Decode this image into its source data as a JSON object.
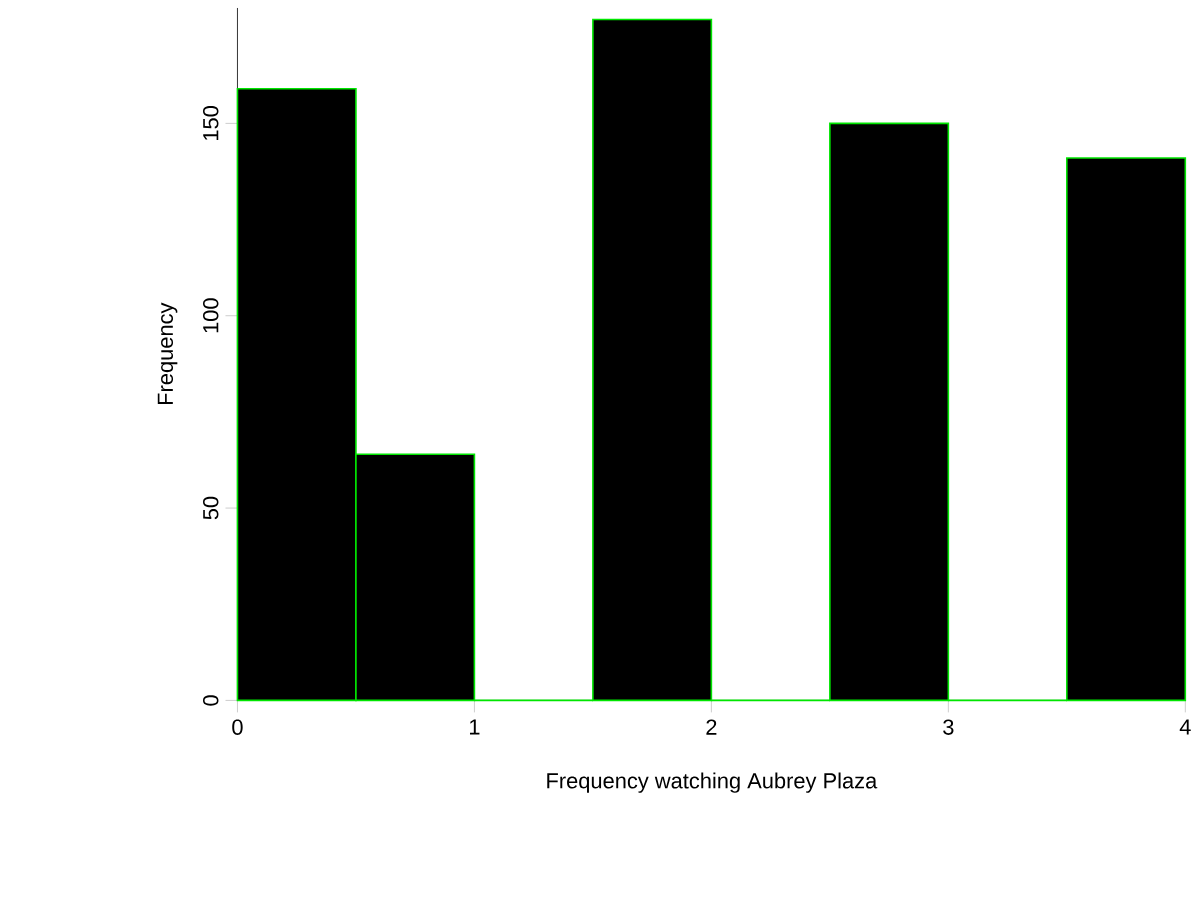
{
  "chart_data": {
    "type": "histogram",
    "xlabel": "Frequency watching Aubrey Plaza",
    "ylabel": "Frequency",
    "bins": [
      0,
      0.5,
      1,
      1.5,
      2,
      2.5,
      3,
      3.5,
      4
    ],
    "values": [
      159,
      64,
      0,
      177,
      0,
      150,
      0,
      141
    ],
    "colors": [
      "#000000",
      "#000000",
      "#00e600",
      "#000000",
      "#00e600",
      "#000000",
      "#00e600",
      "#000000"
    ],
    "xlim": [
      0,
      4
    ],
    "ylim": [
      0,
      180
    ],
    "xticks": [
      0,
      1,
      2,
      3,
      4
    ],
    "yticks": [
      0,
      50,
      100,
      150
    ]
  }
}
